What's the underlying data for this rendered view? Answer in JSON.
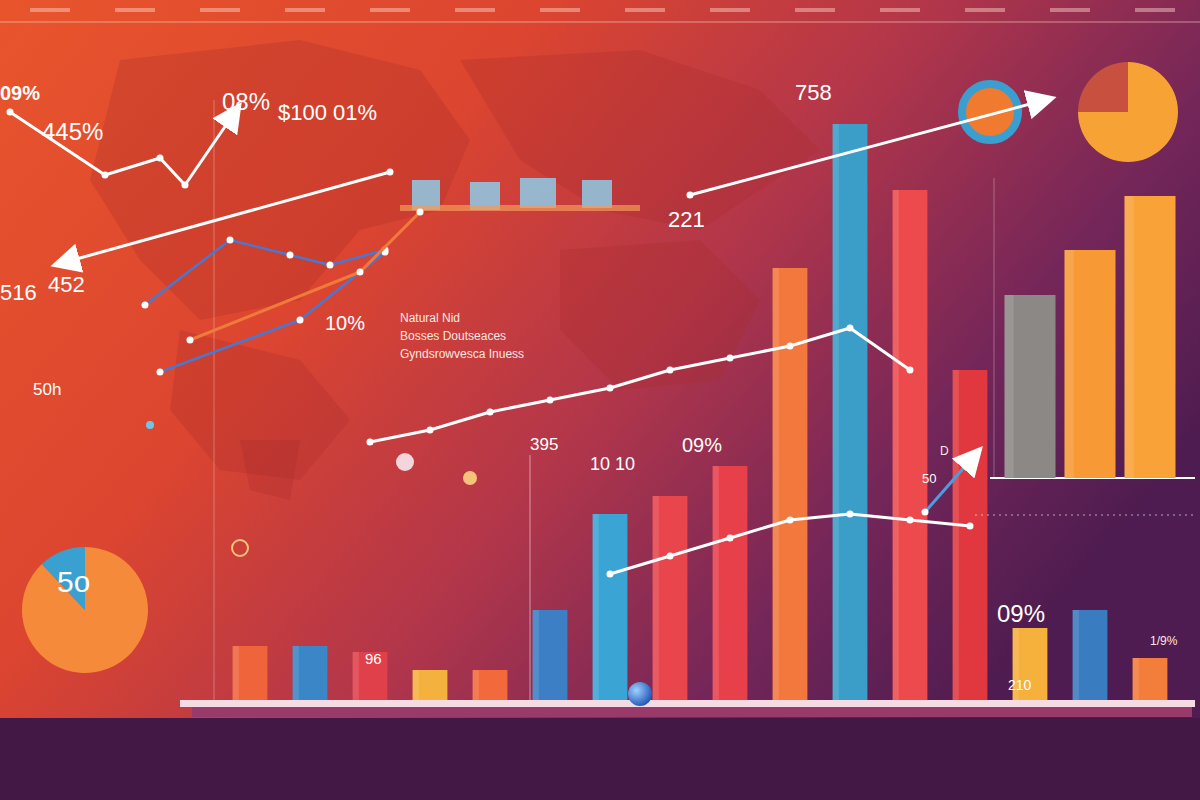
{
  "chart_data": [
    {
      "type": "bar",
      "categories": [
        null,
        null,
        null,
        null,
        null,
        null,
        null,
        null,
        null,
        null,
        null,
        null,
        null,
        null,
        null,
        null
      ],
      "ylim": [
        0,
        100
      ],
      "tick_labels": false,
      "series": [
        {
          "type": "bar",
          "values": [
            9,
            9,
            8,
            5,
            5,
            15,
            31,
            34,
            39,
            72,
            96,
            85,
            55,
            12,
            15,
            7
          ],
          "colors": [
            "#f0643c",
            "#3a86c6",
            "#e0404a",
            "#f5b13e",
            "#f26a3c",
            "#3c7fc4",
            "#3aa4d4",
            "#e8454c",
            "#e8404a",
            "#f3783e",
            "#3a9ec8",
            "#ec4a4c",
            "#e0383e",
            "#f6b03c",
            "#3a7cc0",
            "#f37d3a"
          ]
        },
        {
          "type": "line",
          "color": "#ffffff",
          "values": [
            null,
            null,
            null,
            null,
            null,
            null,
            21,
            24,
            27,
            30,
            31,
            30,
            29,
            null,
            null,
            null
          ]
        },
        {
          "type": "line",
          "color": "#ffffff",
          "values": [
            null,
            null,
            43,
            45,
            48,
            50,
            52,
            55,
            57,
            59,
            62,
            55,
            null,
            null,
            null,
            null
          ]
        }
      ]
    },
    {
      "type": "bar",
      "categories": [
        null,
        null,
        null
      ],
      "values": [
        61,
        76,
        94
      ],
      "colors": [
        "#8c8886",
        "#f79a36",
        "#f9a238"
      ],
      "ylim": [
        0,
        100
      ],
      "tick_labels": false
    },
    {
      "type": "pie",
      "values": [
        75,
        25
      ],
      "colors": [
        "#f7a234",
        "#c8503e"
      ]
    },
    {
      "type": "pie",
      "values": [
        88,
        12
      ],
      "colors": [
        "#f58a3a",
        "#3aa0d0"
      ]
    }
  ],
  "annotations": [
    "09%",
    "445%",
    "08%",
    "$100 01%",
    "758",
    "221",
    "516",
    "452",
    "10%",
    "Natural Nid",
    "Bosses Doutseaces",
    "Gyndsrowvesca Inuess",
    "50h",
    "395",
    "10 10",
    "09%",
    "09%",
    "96",
    "210",
    "5o",
    "D",
    "1/9%",
    "50"
  ]
}
